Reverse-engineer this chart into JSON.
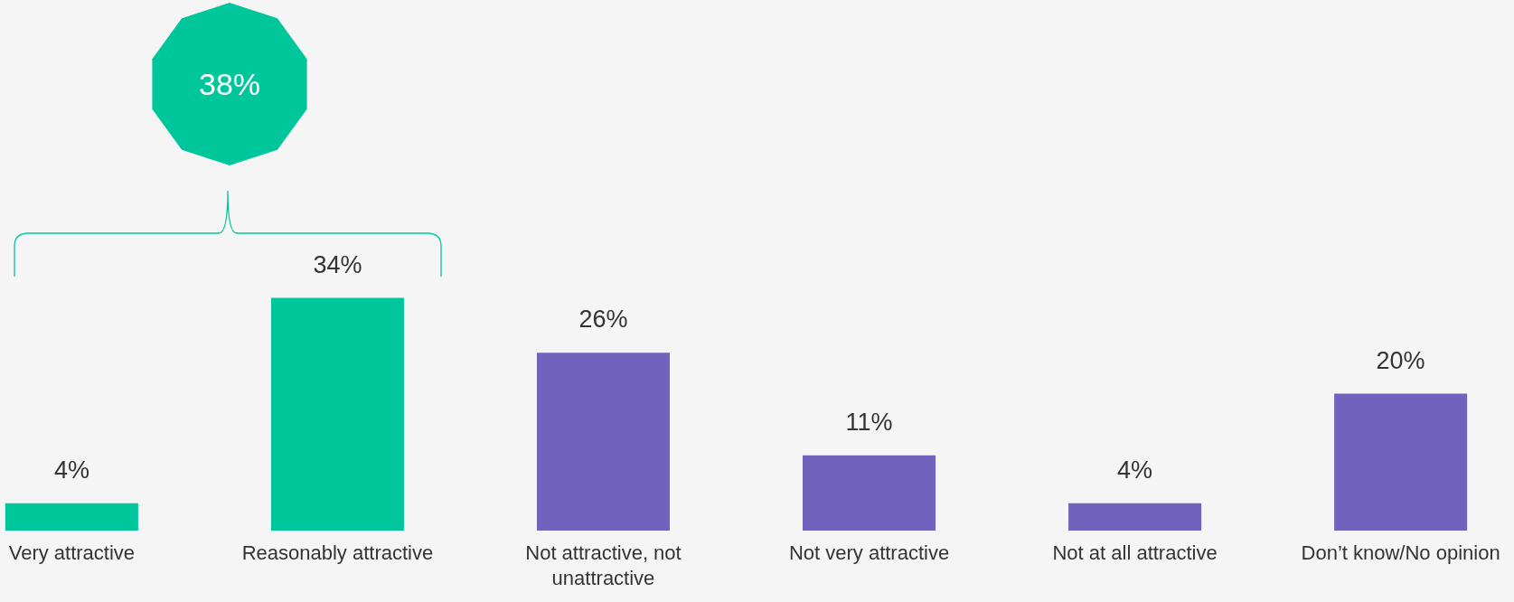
{
  "chart_data": {
    "type": "bar",
    "categories": [
      "Very attractive",
      "Reasonably attractive",
      "Not attractive, not unattractive",
      "Not very attractive",
      "Not at all attractive",
      "Don’t know/No opinion"
    ],
    "values": [
      4,
      34,
      26,
      11,
      4,
      20
    ],
    "colors": [
      "#00c69c",
      "#00c69c",
      "#7163bd",
      "#7163bd",
      "#7163bd",
      "#7163bd"
    ],
    "value_labels": [
      "4%",
      "34%",
      "26%",
      "11%",
      "4%",
      "20%"
    ],
    "annotations": [
      "38%"
    ]
  }
}
